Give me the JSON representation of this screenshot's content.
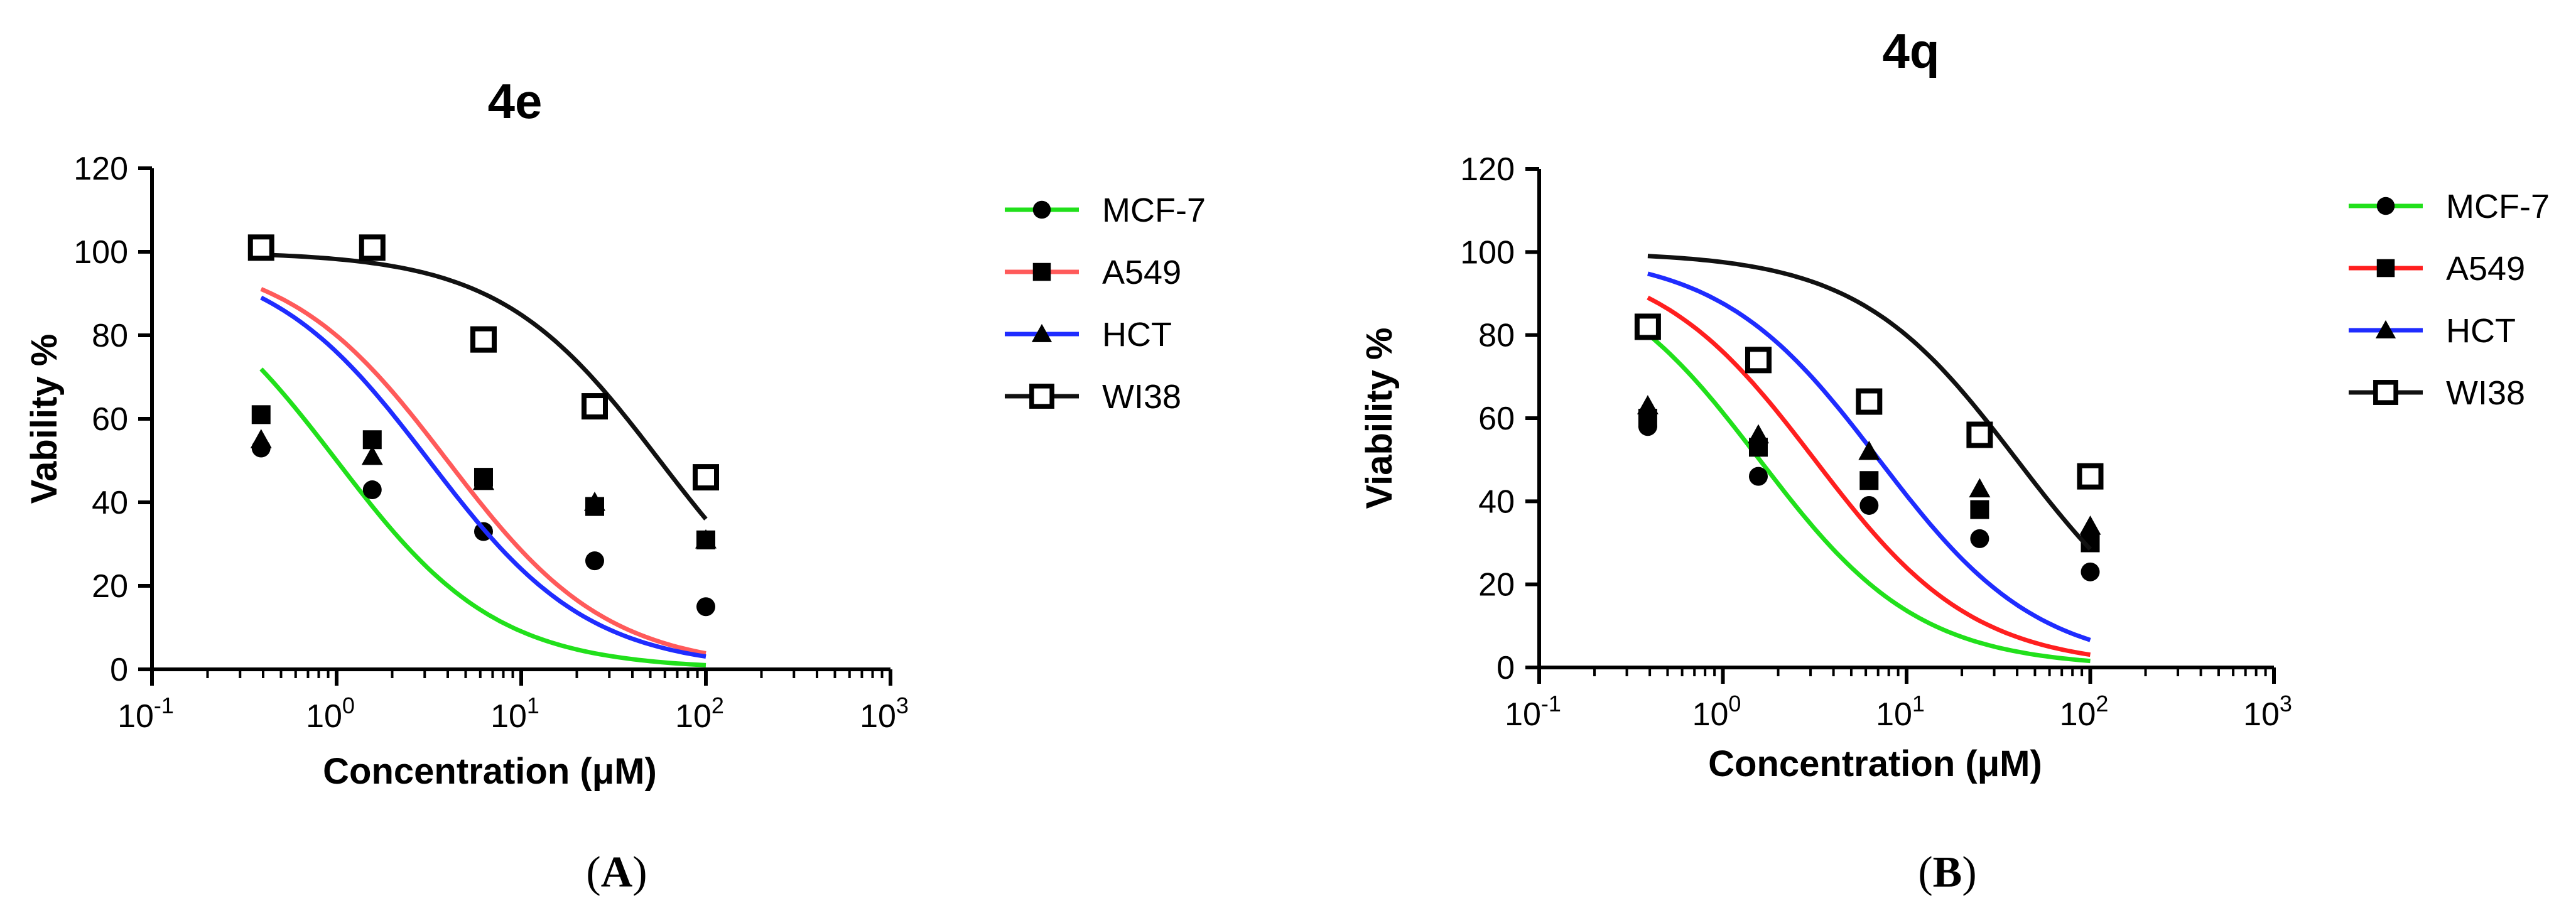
{
  "colors": {
    "MCF-7": "#21e01b",
    "A549": "#ff5a5a",
    "A549_4q": "#ff1f1f",
    "HCT": "#1f2cff",
    "WI38": "#111111",
    "axis": "#000000"
  },
  "chart_data": [
    {
      "type": "scatter",
      "panel": "(A)",
      "panel_letter": "A",
      "title": "4e",
      "xlabel": "Concentration (μM)",
      "ylabel": "Vability %",
      "xscale": "log",
      "xlim": [
        0.1,
        1000
      ],
      "ylim": [
        0,
        120
      ],
      "x_ticks": [
        {
          "value": 0.1,
          "base": "10",
          "exp": "-1"
        },
        {
          "value": 1,
          "base": "10",
          "exp": "0"
        },
        {
          "value": 10,
          "base": "10",
          "exp": "1"
        },
        {
          "value": 100,
          "base": "10",
          "exp": "2"
        },
        {
          "value": 1000,
          "base": "10",
          "exp": "3"
        }
      ],
      "y_ticks": [
        "0",
        "20",
        "40",
        "60",
        "80",
        "100",
        "120"
      ],
      "legend_position": "right",
      "series": [
        {
          "name": "MCF-7",
          "marker": "circle",
          "x": [
            0.39,
            1.56,
            6.25,
            25,
            100
          ],
          "y": [
            53,
            43,
            33,
            26,
            15
          ],
          "fit": {
            "top": 100,
            "bottom": 0,
            "logIC50": 0.0,
            "hill": 1.0,
            "from": 0.39,
            "to": 100
          }
        },
        {
          "name": "A549",
          "marker": "square",
          "x": [
            0.39,
            1.56,
            6.25,
            25,
            100
          ],
          "y": [
            61,
            55,
            46,
            39,
            31
          ],
          "fit": {
            "top": 100,
            "bottom": 0,
            "logIC50": 0.6,
            "hill": 1.0,
            "from": 0.39,
            "to": 100
          }
        },
        {
          "name": "HCT",
          "marker": "triangle",
          "x": [
            0.39,
            1.56,
            6.25,
            25,
            100
          ],
          "y": [
            55,
            51,
            45,
            40,
            31
          ],
          "fit": {
            "top": 100,
            "bottom": 0,
            "logIC50": 0.5,
            "hill": 1.0,
            "from": 0.39,
            "to": 100
          }
        },
        {
          "name": "WI38",
          "marker": "open-square",
          "x": [
            0.39,
            1.56,
            6.25,
            25,
            100
          ],
          "y": [
            101,
            101,
            79,
            63,
            46
          ],
          "fit": {
            "top": 100,
            "bottom": 0,
            "logIC50": 1.75,
            "hill": 1.0,
            "from": 0.39,
            "to": 100
          }
        }
      ]
    },
    {
      "type": "scatter",
      "panel": "(B)",
      "panel_letter": "B",
      "title": "4q",
      "xlabel": "Concentration (μM)",
      "ylabel": "Viability %",
      "xscale": "log",
      "xlim": [
        0.1,
        1000
      ],
      "ylim": [
        0,
        120
      ],
      "x_ticks": [
        {
          "value": 0.1,
          "base": "10",
          "exp": "-1"
        },
        {
          "value": 1,
          "base": "10",
          "exp": "0"
        },
        {
          "value": 10,
          "base": "10",
          "exp": "1"
        },
        {
          "value": 100,
          "base": "10",
          "exp": "2"
        },
        {
          "value": 1000,
          "base": "10",
          "exp": "3"
        }
      ],
      "y_ticks": [
        "0",
        "20",
        "40",
        "60",
        "80",
        "100",
        "120"
      ],
      "legend_position": "right",
      "series": [
        {
          "name": "MCF-7",
          "marker": "circle",
          "x": [
            0.39,
            1.56,
            6.25,
            25,
            100
          ],
          "y": [
            58,
            46,
            39,
            31,
            23
          ],
          "fit": {
            "top": 100,
            "bottom": 0,
            "logIC50": 0.2,
            "hill": 1.0,
            "from": 0.39,
            "to": 100
          }
        },
        {
          "name": "A549",
          "marker": "square",
          "x": [
            0.39,
            1.56,
            6.25,
            25,
            100
          ],
          "y": [
            60,
            53,
            45,
            38,
            30
          ],
          "fit": {
            "top": 100,
            "bottom": 0,
            "logIC50": 0.5,
            "hill": 1.0,
            "from": 0.39,
            "to": 100
          }
        },
        {
          "name": "HCT",
          "marker": "triangle",
          "x": [
            0.39,
            1.56,
            6.25,
            25,
            100
          ],
          "y": [
            63,
            56,
            52,
            43,
            34
          ],
          "fit": {
            "top": 100,
            "bottom": 0,
            "logIC50": 0.85,
            "hill": 1.0,
            "from": 0.39,
            "to": 100
          }
        },
        {
          "name": "WI38",
          "marker": "open-square",
          "x": [
            0.39,
            1.56,
            6.25,
            25,
            100
          ],
          "y": [
            82,
            74,
            64,
            56,
            46
          ],
          "fit": {
            "top": 100,
            "bottom": 0,
            "logIC50": 1.6,
            "hill": 1.0,
            "from": 0.39,
            "to": 100
          }
        }
      ]
    }
  ]
}
